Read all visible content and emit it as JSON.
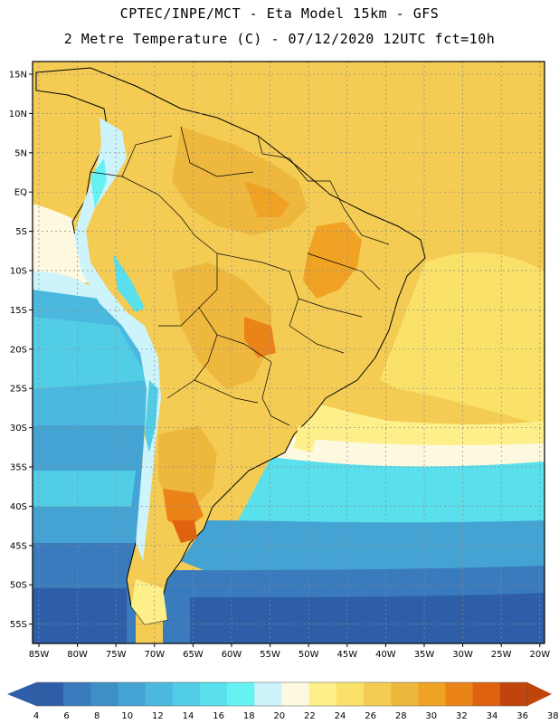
{
  "header": {
    "line1": "CPTEC/INPE/MCT -  Eta Model 15km - GFS",
    "line2": "2 Metre Temperature (C) - 07/12/2020 12UTC fct=10h"
  },
  "axes": {
    "lat_labels": [
      "15N",
      "10N",
      "5N",
      "EQ",
      "5S",
      "10S",
      "15S",
      "20S",
      "25S",
      "30S",
      "35S",
      "40S",
      "45S",
      "50S",
      "55S"
    ],
    "lon_labels": [
      "85W",
      "80W",
      "75W",
      "70W",
      "65W",
      "60W",
      "55W",
      "50W",
      "45W",
      "40W",
      "35W",
      "30W",
      "25W",
      "20W"
    ]
  },
  "colorbar": {
    "ticks": [
      "4",
      "6",
      "8",
      "10",
      "12",
      "14",
      "16",
      "18",
      "20",
      "22",
      "24",
      "26",
      "28",
      "30",
      "32",
      "34",
      "36",
      "38"
    ],
    "low_arrow_color": "#2e5ea8",
    "high_arrow_color": "#c0440c",
    "colors": [
      "#2e5ea8",
      "#3a7bbd",
      "#3f8fc7",
      "#45a3d4",
      "#4bb8df",
      "#52cde6",
      "#59e0ec",
      "#66f2f2",
      "#cdf3fb",
      "#fdf8e0",
      "#fdf08a",
      "#fae26a",
      "#f4cc54",
      "#eeb83e",
      "#f0a224",
      "#ea8318",
      "#df6210",
      "#c0440c"
    ]
  }
}
